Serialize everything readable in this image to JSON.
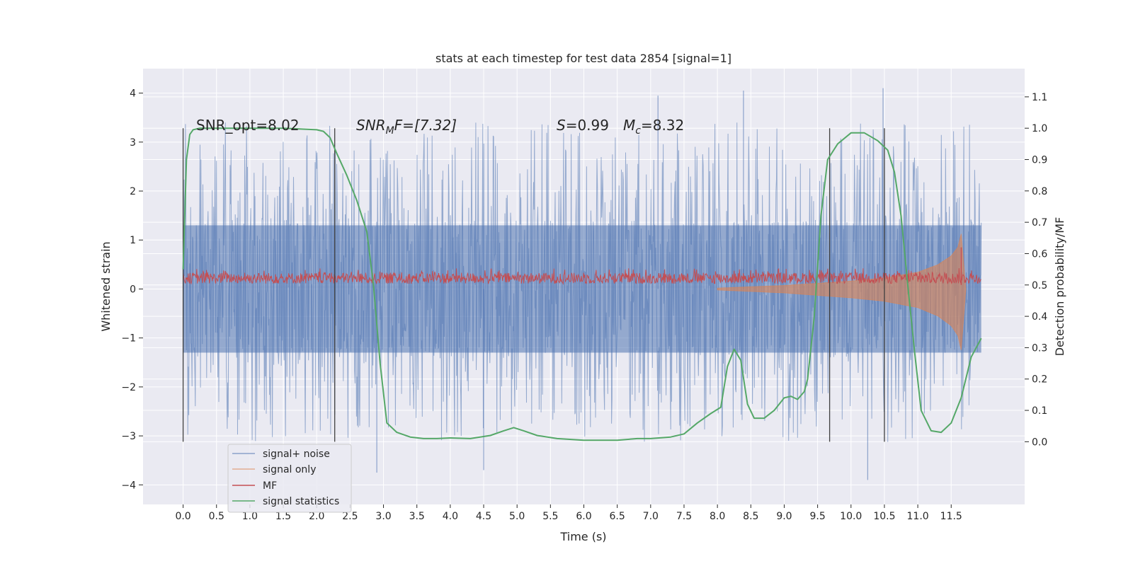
{
  "chart_data": {
    "type": "line",
    "title": "stats at each timestep for test data 2854 [signal=1]",
    "xlabel": "Time (s)",
    "ylabel": "Whitened strain",
    "ylabel_right": "Detection probability/MF",
    "xlim": [
      -0.6,
      12.6
    ],
    "ylim": [
      -4.4,
      4.5
    ],
    "ylim_right": [
      -0.2,
      1.19
    ],
    "x_ticks": [
      0.0,
      0.5,
      1.0,
      1.5,
      2.0,
      2.5,
      3.0,
      3.5,
      4.0,
      4.5,
      5.0,
      5.5,
      6.0,
      6.5,
      7.0,
      7.5,
      8.0,
      8.5,
      9.0,
      9.5,
      10.0,
      10.5,
      11.0,
      11.5
    ],
    "x_tick_labels": [
      "0.0",
      "0.5",
      "1.0",
      "1.5",
      "2.0",
      "2.5",
      "3.0",
      "3.5",
      "4.0",
      "4.5",
      "5.0",
      "5.5",
      "6.0",
      "6.5",
      "7.0",
      "7.5",
      "8.0",
      "8.5",
      "9.0",
      "9.5",
      "10.0",
      "10.5",
      "11.0",
      "11.5"
    ],
    "y_ticks": [
      4,
      3,
      2,
      1,
      0,
      -1,
      -2,
      -3,
      -4
    ],
    "y_tick_labels": [
      "4",
      "3",
      "2",
      "1",
      "0",
      "−1",
      "−2",
      "−3",
      "−4"
    ],
    "y2_ticks": [
      1.1,
      1.0,
      0.9,
      0.8,
      0.7,
      0.6,
      0.5,
      0.4,
      0.3,
      0.2,
      0.1,
      0.0
    ],
    "y2_tick_labels": [
      "1.1",
      "1.0",
      "0.9",
      "0.8",
      "0.7",
      "0.6",
      "0.5",
      "0.4",
      "0.3",
      "0.2",
      "0.1",
      "0.0"
    ],
    "grid": true,
    "legend_position": "lower-left",
    "annotations": {
      "snr_opt": "SNR_opt=8.02",
      "snr_mf": "SNR_MF=[7.32]",
      "snr_mf_parts": {
        "italic": "SNR",
        "sub": "M",
        "rest": "F=[7.32]"
      },
      "s_value": "S=0.99",
      "s_parts": {
        "italic": "S",
        "rest": "=0.99"
      },
      "mc_value": "M_c=8.32",
      "mc_parts": {
        "italic": "M",
        "sub": "c",
        "rest": "=8.32"
      }
    },
    "vertical_markers": {
      "x": [
        0.0,
        2.27,
        9.68,
        10.5
      ],
      "y_range_right": [
        0.0,
        1.0
      ]
    },
    "series": [
      {
        "name": "signal+ noise",
        "color": "#4c72b0",
        "style": "dense-noise",
        "x_range": [
          0.0,
          11.95
        ],
        "core_band": [
          -1.3,
          1.3
        ],
        "typical_peak_range": [
          -2.5,
          3.0
        ],
        "extreme_peaks_y": [
          4.05,
          4.1,
          3.95,
          -3.9,
          -3.75,
          -3.7
        ]
      },
      {
        "name": "signal only",
        "color": "#dd8452",
        "style": "chirp",
        "x_range": [
          8.0,
          11.72
        ],
        "envelope_x": [
          8.0,
          9.0,
          10.0,
          10.5,
          11.0,
          11.3,
          11.5,
          11.6,
          11.65,
          11.72
        ],
        "envelope_y": [
          0.02,
          0.08,
          0.18,
          0.25,
          0.38,
          0.55,
          0.75,
          0.95,
          1.25,
          0.0
        ]
      },
      {
        "name": "MF",
        "color": "#c44e52",
        "style": "noise-right-axis",
        "x_range": [
          0.0,
          11.95
        ],
        "band_right": [
          0.5,
          0.55
        ],
        "spike": {
          "x": 11.65,
          "y_right": 0.62
        }
      },
      {
        "name": "signal statistics",
        "color": "#55a868",
        "style": "line-right-axis",
        "x": [
          0.0,
          0.05,
          0.1,
          0.15,
          0.25,
          0.5,
          1.0,
          1.5,
          2.0,
          2.1,
          2.2,
          2.3,
          2.45,
          2.6,
          2.75,
          2.85,
          2.95,
          3.05,
          3.2,
          3.4,
          3.6,
          3.8,
          4.0,
          4.3,
          4.6,
          4.8,
          4.95,
          5.1,
          5.3,
          5.6,
          6.0,
          6.5,
          6.8,
          7.0,
          7.3,
          7.5,
          7.7,
          7.9,
          8.05,
          8.15,
          8.25,
          8.35,
          8.45,
          8.55,
          8.7,
          8.85,
          9.0,
          9.1,
          9.2,
          9.3,
          9.35,
          9.45,
          9.55,
          9.65,
          9.8,
          10.0,
          10.2,
          10.4,
          10.55,
          10.65,
          10.75,
          10.85,
          10.95,
          11.05,
          11.2,
          11.35,
          11.5,
          11.65,
          11.8,
          11.95
        ],
        "y": [
          0.55,
          0.9,
          0.98,
          0.995,
          1.0,
          1.0,
          1.0,
          1.0,
          0.995,
          0.99,
          0.97,
          0.92,
          0.85,
          0.77,
          0.67,
          0.5,
          0.25,
          0.06,
          0.03,
          0.015,
          0.01,
          0.01,
          0.012,
          0.01,
          0.02,
          0.035,
          0.045,
          0.035,
          0.02,
          0.01,
          0.005,
          0.005,
          0.01,
          0.01,
          0.015,
          0.025,
          0.06,
          0.09,
          0.11,
          0.24,
          0.295,
          0.26,
          0.12,
          0.075,
          0.075,
          0.1,
          0.14,
          0.145,
          0.135,
          0.16,
          0.2,
          0.4,
          0.72,
          0.9,
          0.95,
          0.985,
          0.985,
          0.96,
          0.93,
          0.86,
          0.72,
          0.5,
          0.29,
          0.1,
          0.035,
          0.03,
          0.06,
          0.14,
          0.27,
          0.33
        ]
      }
    ]
  },
  "legend": {
    "items": [
      {
        "label": "signal+ noise",
        "color": "#4c72b0",
        "alpha": 0.6
      },
      {
        "label": "signal only",
        "color": "#dd8452",
        "alpha": 0.6
      },
      {
        "label": "MF",
        "color": "#c44e52",
        "alpha": 1.0
      },
      {
        "label": "signal statistics",
        "color": "#55a868",
        "alpha": 1.0
      }
    ]
  },
  "colors": {
    "plot_background": "#eaeaf2",
    "grid": "#ffffff",
    "text": "#262626",
    "marker_lines": "#404040"
  }
}
